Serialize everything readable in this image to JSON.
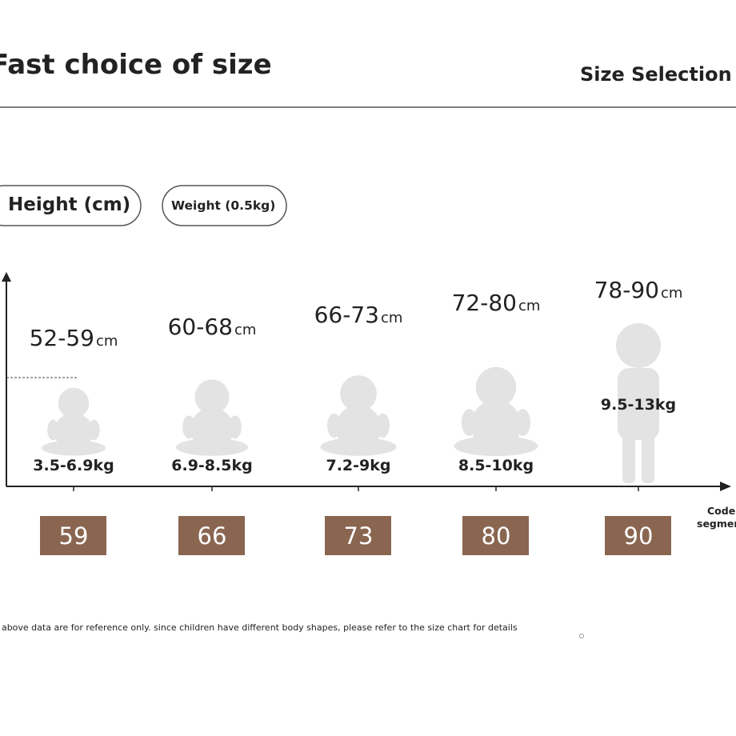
{
  "header": {
    "title": "Fast choice of size",
    "subtitle": "Size Selection"
  },
  "tabs": [
    "Height (cm)",
    "Weight (0.5kg)"
  ],
  "axis_label": [
    "Code",
    "segment"
  ],
  "sizes": [
    {
      "height": "52-59",
      "unit": "cm",
      "weight": "3.5-6.9kg",
      "code": "59"
    },
    {
      "height": "60-68",
      "unit": "cm",
      "weight": "6.9-8.5kg",
      "code": "66"
    },
    {
      "height": "66-73",
      "unit": "cm",
      "weight": "7.2-9kg",
      "code": "73"
    },
    {
      "height": "72-80",
      "unit": "cm",
      "weight": "8.5-10kg",
      "code": "80"
    },
    {
      "height": "78-90",
      "unit": "cm",
      "weight": "9.5-13kg",
      "code": "90"
    }
  ],
  "footnote": "The above data are for reference only. since children have different body shapes, please refer to the size chart for details"
}
